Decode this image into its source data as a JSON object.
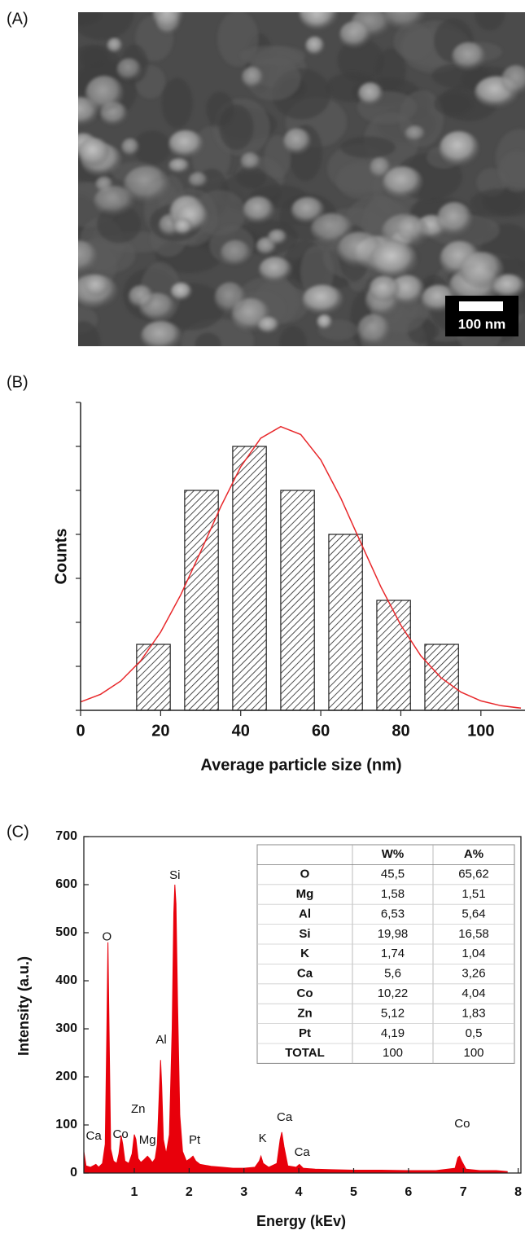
{
  "image_panel": {
    "label": "(A)",
    "scale_bar_label": "100 nm"
  },
  "chart_data": [
    {
      "type": "histogram",
      "panel_label": "(B)",
      "bins": [
        14,
        26,
        38,
        50,
        62,
        74,
        86,
        98
      ],
      "counts": [
        3,
        10,
        12,
        10,
        8,
        5,
        3
      ],
      "xlim": [
        0,
        110
      ],
      "xticks": [
        0,
        20,
        40,
        60,
        80,
        100
      ],
      "ylim": [
        0,
        14
      ],
      "yticks": [
        0,
        2,
        4,
        6,
        8,
        10,
        12,
        14
      ],
      "ytick_labels": false,
      "xlabel": "Average particle size (nm)",
      "ylabel": "Counts",
      "fit": {
        "color": "#e8272a",
        "x": [
          0,
          5,
          10,
          15,
          20,
          25,
          30,
          35,
          40,
          45,
          50,
          55,
          60,
          65,
          70,
          75,
          80,
          85,
          90,
          95,
          100,
          105,
          110
        ],
        "values": [
          0.38,
          0.73,
          1.33,
          2.25,
          3.56,
          5.25,
          7.21,
          9.25,
          11.07,
          12.37,
          12.9,
          12.54,
          11.39,
          9.65,
          7.62,
          5.62,
          3.87,
          2.48,
          1.49,
          0.83,
          0.43,
          0.21,
          0.1
        ]
      }
    },
    {
      "type": "area",
      "panel_label": "(C)",
      "color": "#e8000b",
      "x": [
        0.08,
        0.12,
        0.2,
        0.3,
        0.35,
        0.42,
        0.47,
        0.5,
        0.52,
        0.54,
        0.57,
        0.62,
        0.68,
        0.72,
        0.76,
        0.79,
        0.83,
        0.9,
        0.96,
        1.0,
        1.03,
        1.07,
        1.12,
        1.18,
        1.24,
        1.28,
        1.33,
        1.38,
        1.42,
        1.46,
        1.48,
        1.5,
        1.53,
        1.58,
        1.64,
        1.69,
        1.72,
        1.74,
        1.76,
        1.79,
        1.83,
        1.88,
        1.95,
        2.02,
        2.07,
        2.12,
        2.2,
        2.4,
        2.6,
        2.8,
        3.0,
        3.2,
        3.28,
        3.31,
        3.35,
        3.45,
        3.6,
        3.66,
        3.69,
        3.73,
        3.8,
        3.95,
        4.01,
        4.08,
        4.3,
        4.6,
        5.0,
        5.5,
        6.0,
        6.5,
        6.85,
        6.9,
        6.93,
        6.97,
        7.05,
        7.3,
        7.6,
        7.8
      ],
      "values": [
        45,
        15,
        12,
        18,
        12,
        20,
        60,
        300,
        480,
        300,
        50,
        25,
        20,
        40,
        78,
        60,
        25,
        20,
        40,
        80,
        70,
        30,
        22,
        28,
        35,
        30,
        22,
        30,
        60,
        180,
        235,
        180,
        70,
        40,
        80,
        300,
        540,
        600,
        560,
        350,
        120,
        45,
        25,
        30,
        35,
        25,
        18,
        14,
        12,
        10,
        10,
        12,
        25,
        35,
        20,
        12,
        20,
        70,
        85,
        55,
        15,
        12,
        18,
        10,
        8,
        7,
        6,
        6,
        5,
        5,
        10,
        32,
        35,
        25,
        8,
        5,
        5,
        3
      ],
      "xlim": [
        0.08,
        8.05
      ],
      "xticks": [
        1,
        2,
        3,
        4,
        5,
        6,
        7,
        8
      ],
      "ylim": [
        0,
        700
      ],
      "yticks": [
        0,
        100,
        200,
        300,
        400,
        500,
        600,
        700
      ],
      "xlabel": "Energy (kEv)",
      "ylabel": "Intensity (a.u.)",
      "peak_labels": [
        {
          "text": "Ca",
          "x": 0.26,
          "y": 76
        },
        {
          "text": "O",
          "x": 0.5,
          "y": 491
        },
        {
          "text": "Co",
          "x": 0.75,
          "y": 80
        },
        {
          "text": "Zn",
          "x": 1.07,
          "y": 132
        },
        {
          "text": "Mg",
          "x": 1.24,
          "y": 68
        },
        {
          "text": "Al",
          "x": 1.49,
          "y": 276
        },
        {
          "text": "Si",
          "x": 1.74,
          "y": 619
        },
        {
          "text": "Pt",
          "x": 2.1,
          "y": 68
        },
        {
          "text": "K",
          "x": 3.34,
          "y": 71
        },
        {
          "text": "Ca",
          "x": 3.74,
          "y": 115
        },
        {
          "text": "Ca",
          "x": 4.06,
          "y": 42
        },
        {
          "text": "Co",
          "x": 6.98,
          "y": 102
        }
      ],
      "table": {
        "columns": [
          "W%",
          "A%"
        ],
        "rows": [
          [
            "O",
            "45,5",
            "65,62"
          ],
          [
            "Mg",
            "1,58",
            "1,51"
          ],
          [
            "Al",
            "6,53",
            "5,64"
          ],
          [
            "Si",
            "19,98",
            "16,58"
          ],
          [
            "K",
            "1,74",
            "1,04"
          ],
          [
            "Ca",
            "5,6",
            "3,26"
          ],
          [
            "Co",
            "10,22",
            "4,04"
          ],
          [
            "Zn",
            "5,12",
            "1,83"
          ],
          [
            "Pt",
            "4,19",
            "0,5"
          ],
          [
            "TOTAL",
            "100",
            "100"
          ]
        ]
      }
    }
  ]
}
